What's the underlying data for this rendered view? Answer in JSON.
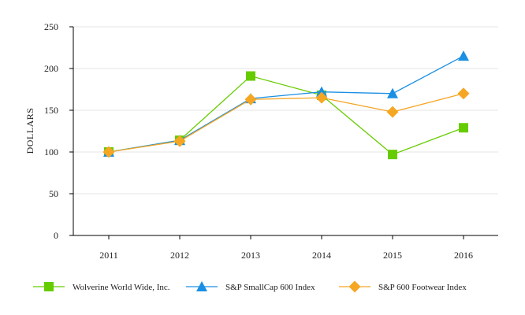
{
  "chart_data": {
    "type": "line",
    "title": "",
    "xlabel": "",
    "ylabel": "DOLLARS",
    "categories": [
      "2011",
      "2012",
      "2013",
      "2014",
      "2015",
      "2016"
    ],
    "ylim": [
      0,
      250
    ],
    "yticks": [
      "0",
      "50",
      "100",
      "150",
      "200",
      "250"
    ],
    "grid": true,
    "legend_position": "bottom",
    "series": [
      {
        "name": "Wolverine World Wide, Inc.",
        "values": [
          100,
          114,
          191,
          168,
          97,
          129
        ],
        "color": "#66cc00",
        "marker": "square"
      },
      {
        "name": "S&P SmallCap 600 Index",
        "values": [
          100,
          114,
          164,
          172,
          170,
          215
        ],
        "color": "#1a8fe3",
        "marker": "triangle"
      },
      {
        "name": "S&P 600 Footwear Index",
        "values": [
          100,
          113,
          163,
          165,
          148,
          170
        ],
        "color": "#f5a623",
        "marker": "diamond"
      }
    ]
  }
}
